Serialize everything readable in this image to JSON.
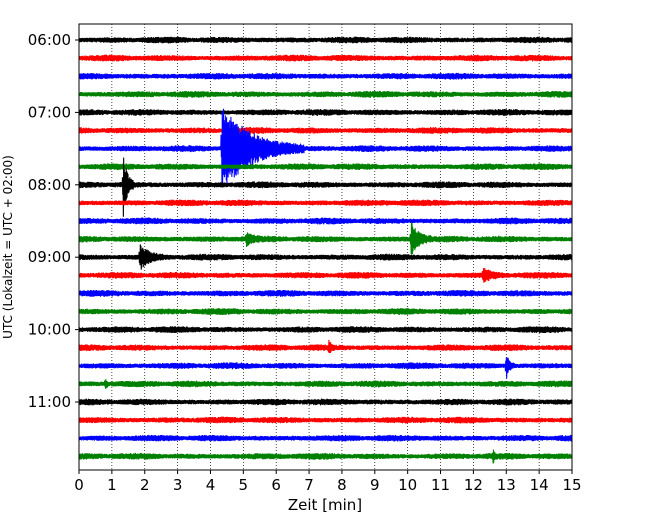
{
  "chart_data": {
    "type": "line",
    "title": "",
    "xlabel": "Zeit  [min]",
    "ylabel": "UTC (Lokalzeit = UTC + 02:00)",
    "xlim": [
      0,
      15
    ],
    "x_ticks": [
      "0",
      "1",
      "2",
      "3",
      "4",
      "5",
      "6",
      "7",
      "8",
      "9",
      "10",
      "11",
      "12",
      "13",
      "14",
      "15"
    ],
    "y_ticks": [
      "06:00",
      "07:00",
      "08:00",
      "09:00",
      "10:00",
      "11:00"
    ],
    "grid": "vertical dotted lines at each minute",
    "trace_interval_min": 15,
    "trace_colors": [
      "#000000",
      "#ff0000",
      "#0000ff",
      "#008000"
    ],
    "traces": [
      {
        "start": "06:00",
        "color": "#000000"
      },
      {
        "start": "06:15",
        "color": "#ff0000"
      },
      {
        "start": "06:30",
        "color": "#0000ff"
      },
      {
        "start": "06:45",
        "color": "#008000"
      },
      {
        "start": "07:00",
        "color": "#000000"
      },
      {
        "start": "07:15",
        "color": "#ff0000"
      },
      {
        "start": "07:30",
        "color": "#0000ff",
        "events": [
          {
            "t": 4.35,
            "amp": 40,
            "dur": 2.5
          }
        ]
      },
      {
        "start": "07:45",
        "color": "#008000"
      },
      {
        "start": "08:00",
        "color": "#000000",
        "events": [
          {
            "t": 1.35,
            "amp": 32,
            "dur": 0.3
          }
        ]
      },
      {
        "start": "08:15",
        "color": "#ff0000"
      },
      {
        "start": "08:30",
        "color": "#0000ff"
      },
      {
        "start": "08:45",
        "color": "#008000",
        "events": [
          {
            "t": 10.1,
            "amp": 16,
            "dur": 0.6
          },
          {
            "t": 5.1,
            "amp": 5,
            "dur": 0.4
          }
        ]
      },
      {
        "start": "09:00",
        "color": "#000000",
        "events": [
          {
            "t": 1.85,
            "amp": 12,
            "dur": 0.7
          }
        ]
      },
      {
        "start": "09:15",
        "color": "#ff0000",
        "events": [
          {
            "t": 12.3,
            "amp": 6,
            "dur": 0.6
          }
        ]
      },
      {
        "start": "09:30",
        "color": "#0000ff"
      },
      {
        "start": "09:45",
        "color": "#008000"
      },
      {
        "start": "10:00",
        "color": "#000000"
      },
      {
        "start": "10:15",
        "color": "#ff0000",
        "events": [
          {
            "t": 7.6,
            "amp": 5,
            "dur": 0.2
          }
        ]
      },
      {
        "start": "10:30",
        "color": "#0000ff",
        "events": [
          {
            "t": 13.0,
            "amp": 12,
            "dur": 0.25
          }
        ]
      },
      {
        "start": "10:45",
        "color": "#008000",
        "events": [
          {
            "t": 0.8,
            "amp": 7,
            "dur": 0.1
          }
        ]
      },
      {
        "start": "11:00",
        "color": "#000000"
      },
      {
        "start": "11:15",
        "color": "#ff0000"
      },
      {
        "start": "11:30",
        "color": "#0000ff"
      },
      {
        "start": "11:45",
        "color": "#008000",
        "events": [
          {
            "t": 12.6,
            "amp": 7,
            "dur": 0.1
          }
        ]
      }
    ]
  }
}
